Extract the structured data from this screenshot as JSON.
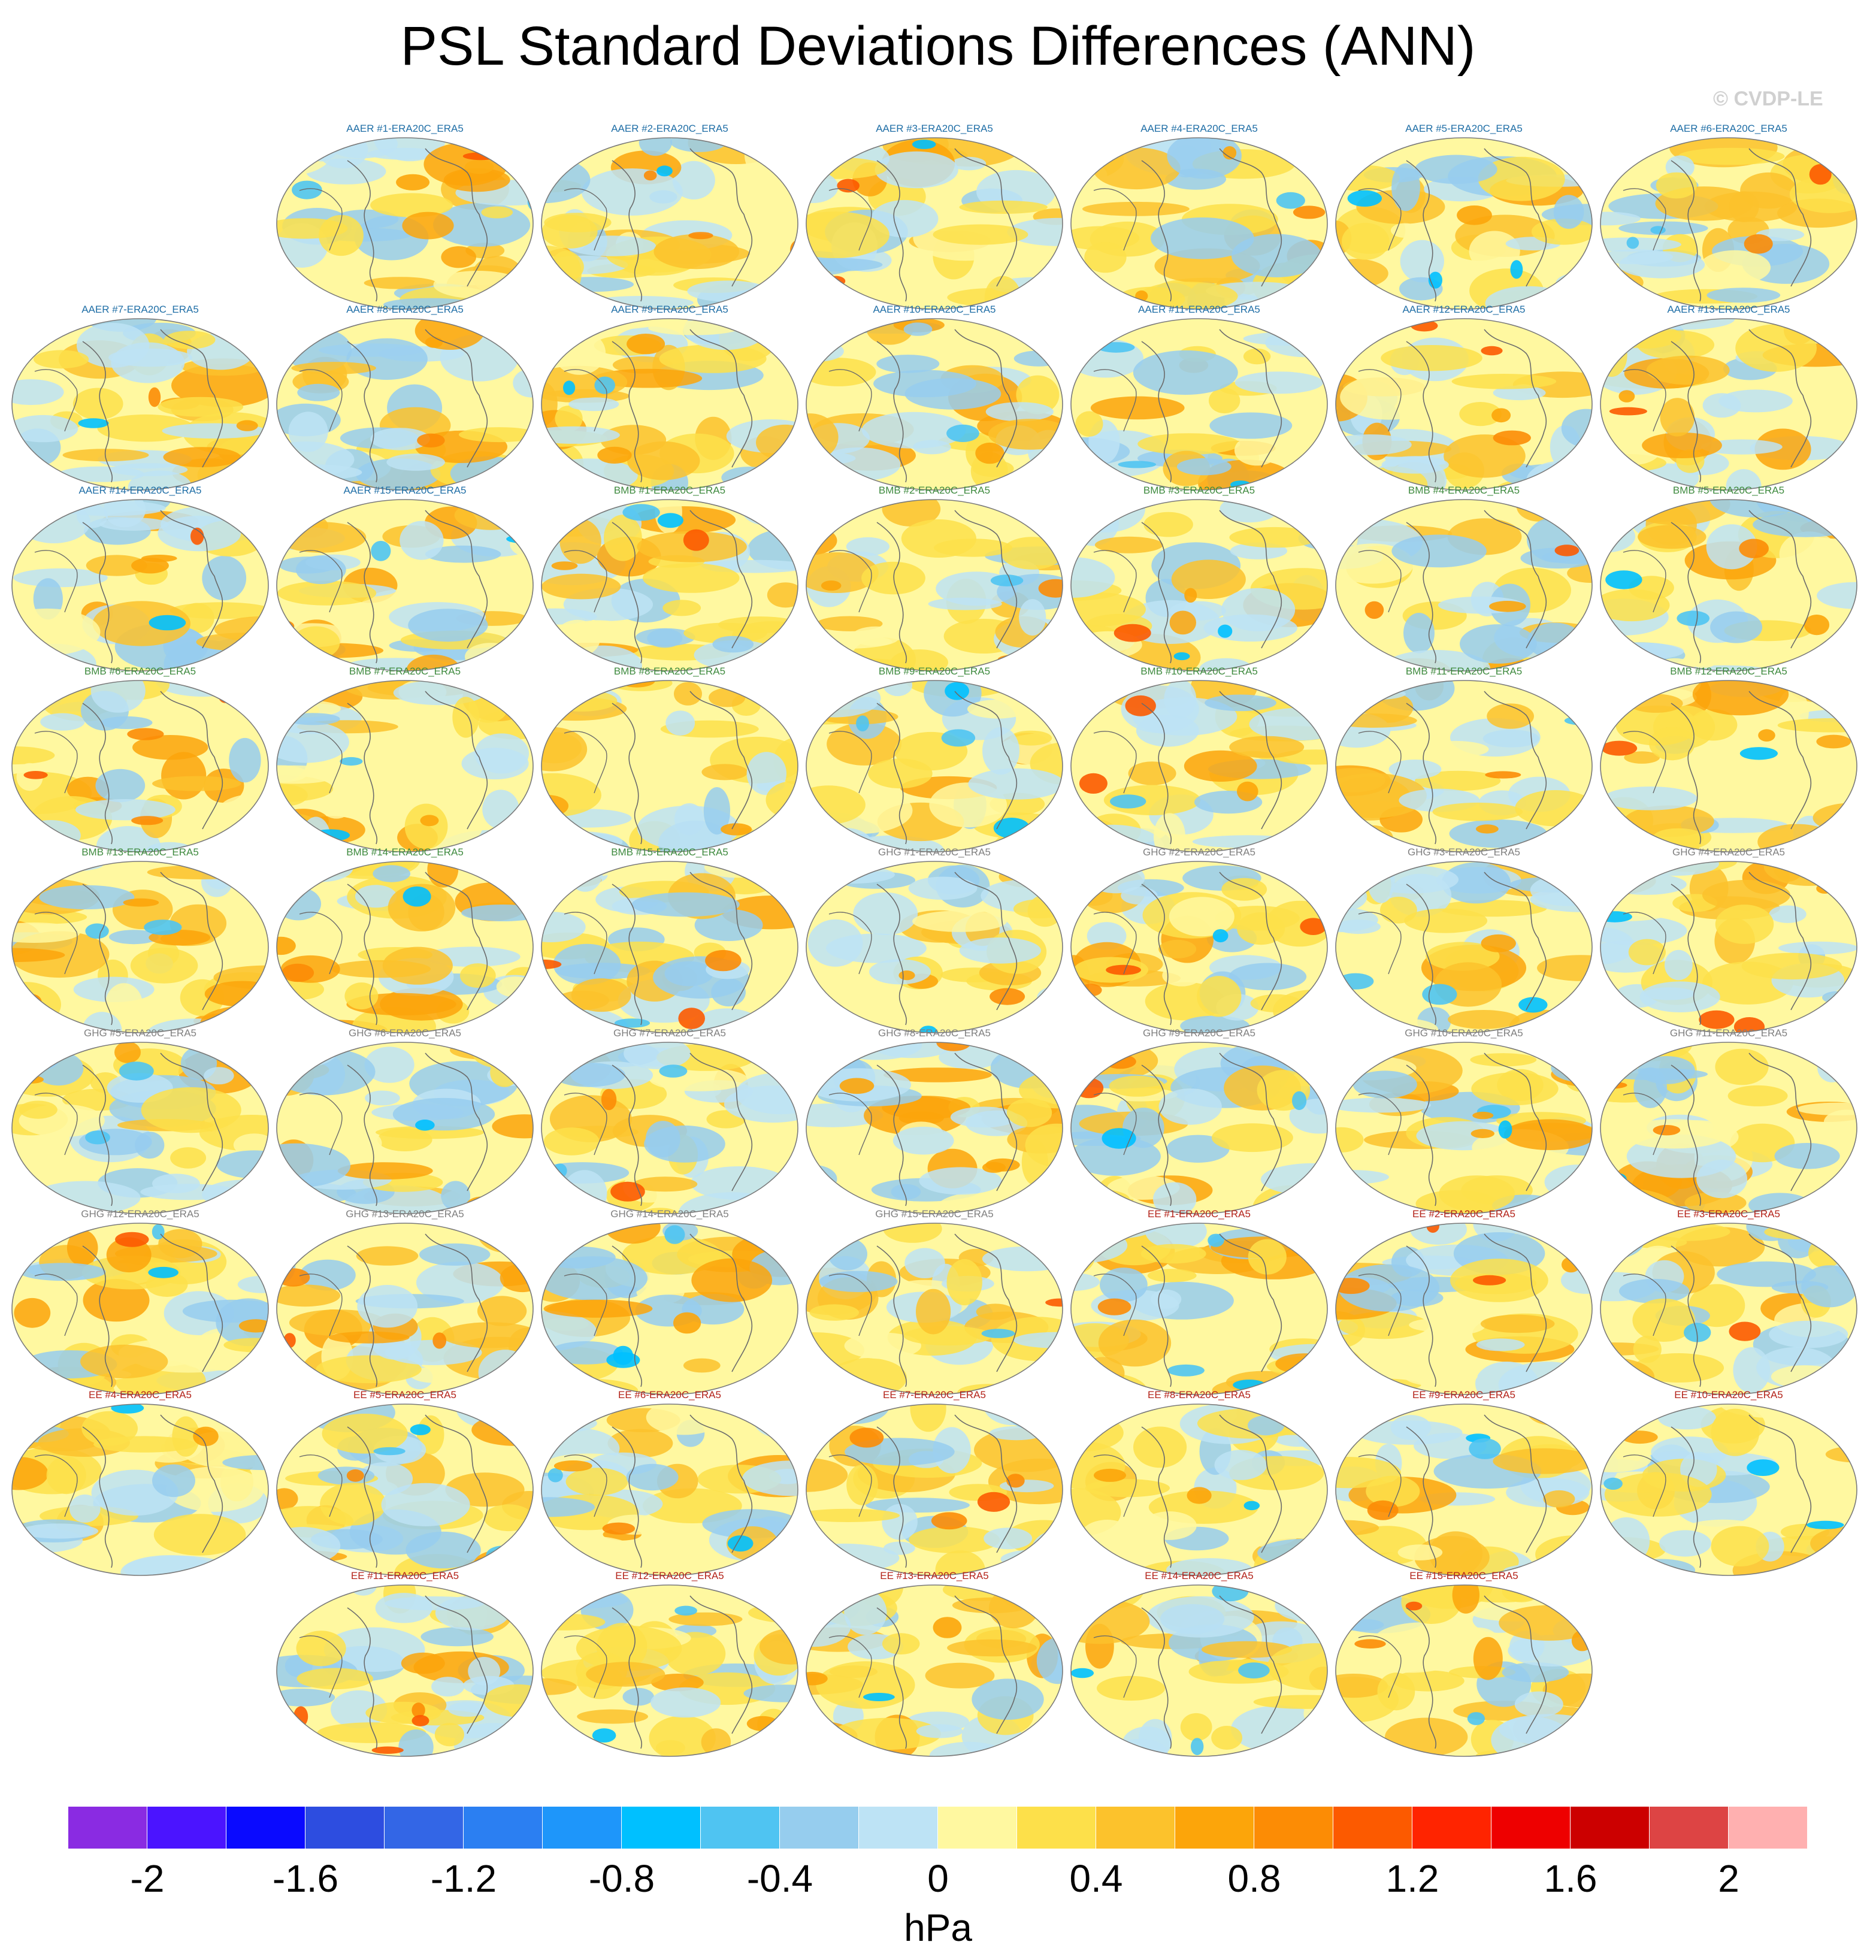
{
  "title": "PSL Standard Deviations Differences (ANN)",
  "credit": "© CVDP-LE",
  "units": "hPa",
  "group_colors": {
    "AAER": "#1f6ea6",
    "BMB": "#3e8a3e",
    "GHG": "#7f7f7f",
    "EE": "#b3231a"
  },
  "panel_rows": [
    {
      "start_col": 1,
      "labels": [
        "AAER #1-ERA20C_ERA5",
        "AAER #2-ERA20C_ERA5",
        "AAER #3-ERA20C_ERA5",
        "AAER #4-ERA20C_ERA5",
        "AAER #5-ERA20C_ERA5",
        "AAER #6-ERA20C_ERA5"
      ]
    },
    {
      "start_col": 0,
      "labels": [
        "AAER #7-ERA20C_ERA5",
        "AAER #8-ERA20C_ERA5",
        "AAER #9-ERA20C_ERA5",
        "AAER #10-ERA20C_ERA5",
        "AAER #11-ERA20C_ERA5",
        "AAER #12-ERA20C_ERA5",
        "AAER #13-ERA20C_ERA5"
      ]
    },
    {
      "start_col": 0,
      "labels": [
        "AAER #14-ERA20C_ERA5",
        "AAER #15-ERA20C_ERA5",
        "BMB #1-ERA20C_ERA5",
        "BMB #2-ERA20C_ERA5",
        "BMB #3-ERA20C_ERA5",
        "BMB #4-ERA20C_ERA5",
        "BMB #5-ERA20C_ERA5"
      ]
    },
    {
      "start_col": 0,
      "labels": [
        "BMB #6-ERA20C_ERA5",
        "BMB #7-ERA20C_ERA5",
        "BMB #8-ERA20C_ERA5",
        "BMB #9-ERA20C_ERA5",
        "BMB #10-ERA20C_ERA5",
        "BMB #11-ERA20C_ERA5",
        "BMB #12-ERA20C_ERA5"
      ]
    },
    {
      "start_col": 0,
      "labels": [
        "BMB #13-ERA20C_ERA5",
        "BMB #14-ERA20C_ERA5",
        "BMB #15-ERA20C_ERA5",
        "GHG #1-ERA20C_ERA5",
        "GHG #2-ERA20C_ERA5",
        "GHG #3-ERA20C_ERA5",
        "GHG #4-ERA20C_ERA5"
      ]
    },
    {
      "start_col": 0,
      "labels": [
        "GHG #5-ERA20C_ERA5",
        "GHG #6-ERA20C_ERA5",
        "GHG #7-ERA20C_ERA5",
        "GHG #8-ERA20C_ERA5",
        "GHG #9-ERA20C_ERA5",
        "GHG #10-ERA20C_ERA5",
        "GHG #11-ERA20C_ERA5"
      ]
    },
    {
      "start_col": 0,
      "labels": [
        "GHG #12-ERA20C_ERA5",
        "GHG #13-ERA20C_ERA5",
        "GHG #14-ERA20C_ERA5",
        "GHG #15-ERA20C_ERA5",
        "EE #1-ERA20C_ERA5",
        "EE #2-ERA20C_ERA5",
        "EE #3-ERA20C_ERA5"
      ]
    },
    {
      "start_col": 0,
      "labels": [
        "EE #4-ERA20C_ERA5",
        "EE #5-ERA20C_ERA5",
        "EE #6-ERA20C_ERA5",
        "EE #7-ERA20C_ERA5",
        "EE #8-ERA20C_ERA5",
        "EE #9-ERA20C_ERA5",
        "EE #10-ERA20C_ERA5"
      ]
    },
    {
      "start_col": 1,
      "labels": [
        "EE #11-ERA20C_ERA5",
        "EE #12-ERA20C_ERA5",
        "EE #13-ERA20C_ERA5",
        "EE #14-ERA20C_ERA5",
        "EE #15-ERA20C_ERA5"
      ]
    }
  ],
  "colorbar": {
    "colors": [
      "#8a2be2",
      "#4b14ff",
      "#0a0aff",
      "#2d4de0",
      "#3366e6",
      "#2b7ff2",
      "#1e96fa",
      "#00c0ff",
      "#4fc4f2",
      "#96cdee",
      "#bde3f5",
      "#fff8a0",
      "#fde04a",
      "#fcc22c",
      "#fca50a",
      "#fc8c05",
      "#fc5a00",
      "#ff2400",
      "#ee0000",
      "#cc0000",
      "#dd4444",
      "#ffb0b0"
    ],
    "tick_values": [
      -2,
      -1.6,
      -1.2,
      -0.8,
      -0.4,
      0,
      0.4,
      0.8,
      1.2,
      1.6,
      2
    ],
    "tick_labels": [
      "-2",
      "-1.6",
      "-1.2",
      "-0.8",
      "-0.4",
      "0",
      "0.4",
      "0.8",
      "1.2",
      "1.6",
      "2"
    ],
    "range": [
      -2.2,
      2.2
    ]
  }
}
